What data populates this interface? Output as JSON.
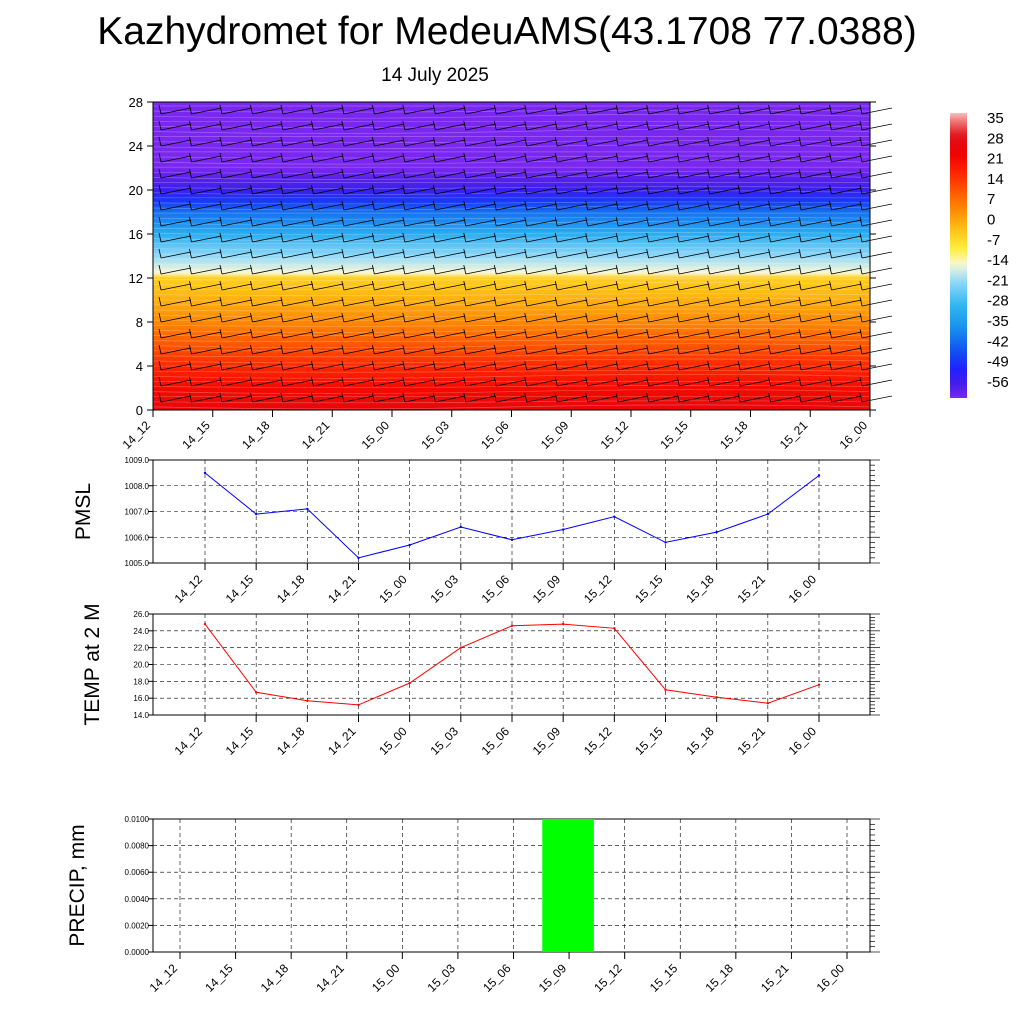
{
  "title": "Kazhydromet for MedeuAMS(43.1708 77.0388)",
  "subtitle": "14 July 2025",
  "time_labels": [
    "14_12",
    "14_15",
    "14_18",
    "14_21",
    "15_00",
    "15_03",
    "15_06",
    "15_09",
    "15_12",
    "15_15",
    "15_18",
    "15_21",
    "16_00"
  ],
  "chart_data": [
    {
      "type": "heatmap",
      "name": "temperature_profile",
      "x": [
        "14_12",
        "14_15",
        "14_18",
        "14_21",
        "15_00",
        "15_03",
        "15_06",
        "15_09",
        "15_12",
        "15_15",
        "15_18",
        "15_21",
        "16_00"
      ],
      "y_ticks": [
        0,
        4,
        8,
        12,
        16,
        20,
        24,
        28
      ],
      "ylim": [
        0,
        28
      ],
      "colorbar_labels": [
        "35",
        "28",
        "21",
        "14",
        "7",
        "0",
        "-7",
        "-14",
        "-21",
        "-28",
        "-35",
        "-42",
        "-49",
        "-56"
      ],
      "colorbar_range": [
        -60,
        38
      ],
      "profile": {
        "heights": [
          0,
          2,
          4,
          6,
          8,
          10,
          11,
          12,
          12.5,
          14,
          16,
          18,
          19,
          20,
          21,
          22,
          23,
          24,
          26,
          28
        ],
        "values": [
          27,
          22,
          17,
          11,
          5,
          0,
          -2,
          -4,
          -14,
          -20,
          -30,
          -40,
          -47,
          -54,
          -57,
          -60,
          -60,
          -60,
          -60,
          -60
        ]
      },
      "wind_barbs": "present"
    },
    {
      "type": "line",
      "name": "pmsl",
      "ylabel": "PMSL",
      "x": [
        "14_12",
        "14_15",
        "14_18",
        "14_21",
        "15_00",
        "15_03",
        "15_06",
        "15_09",
        "15_12",
        "15_15",
        "15_18",
        "15_21",
        "16_00"
      ],
      "values": [
        1008.5,
        1006.9,
        1007.1,
        1005.2,
        1005.7,
        1006.4,
        1005.9,
        1006.3,
        1006.8,
        1005.8,
        1006.2,
        1006.9,
        1008.4
      ],
      "y_ticks": [
        "1005.0",
        "1006.0",
        "1007.0",
        "1008.0",
        "1009.0"
      ],
      "ylim": [
        1005.0,
        1009.0
      ],
      "color": "#0000ff",
      "grid": true
    },
    {
      "type": "line",
      "name": "temp_2m",
      "ylabel": "TEMP at 2 M",
      "x": [
        "14_12",
        "14_15",
        "14_18",
        "14_21",
        "15_00",
        "15_03",
        "15_06",
        "15_09",
        "15_12",
        "15_15",
        "15_18",
        "15_21",
        "16_00"
      ],
      "values": [
        24.8,
        16.7,
        15.7,
        15.2,
        17.8,
        22.0,
        24.6,
        24.8,
        24.3,
        17.0,
        16.1,
        15.4,
        17.6
      ],
      "y_ticks": [
        "14.0",
        "16.0",
        "18.0",
        "20.0",
        "22.0",
        "24.0",
        "26.0"
      ],
      "ylim": [
        14.0,
        26.0
      ],
      "color": "#ff0000",
      "grid": true
    },
    {
      "type": "bar",
      "name": "precip",
      "ylabel": "PRECIP, mm",
      "categories": [
        "14_12",
        "14_15",
        "14_18",
        "14_21",
        "15_00",
        "15_03",
        "15_06",
        "15_09",
        "15_12",
        "15_15",
        "15_18",
        "15_21",
        "16_00"
      ],
      "values": [
        0,
        0,
        0,
        0,
        0,
        0,
        0,
        0.01,
        0,
        0,
        0,
        0,
        0
      ],
      "y_ticks": [
        "0.0000",
        "0.0020",
        "0.0040",
        "0.0060",
        "0.0080",
        "0.0100"
      ],
      "ylim": [
        0,
        0.01
      ],
      "color": "#00ff00",
      "grid": true
    }
  ]
}
